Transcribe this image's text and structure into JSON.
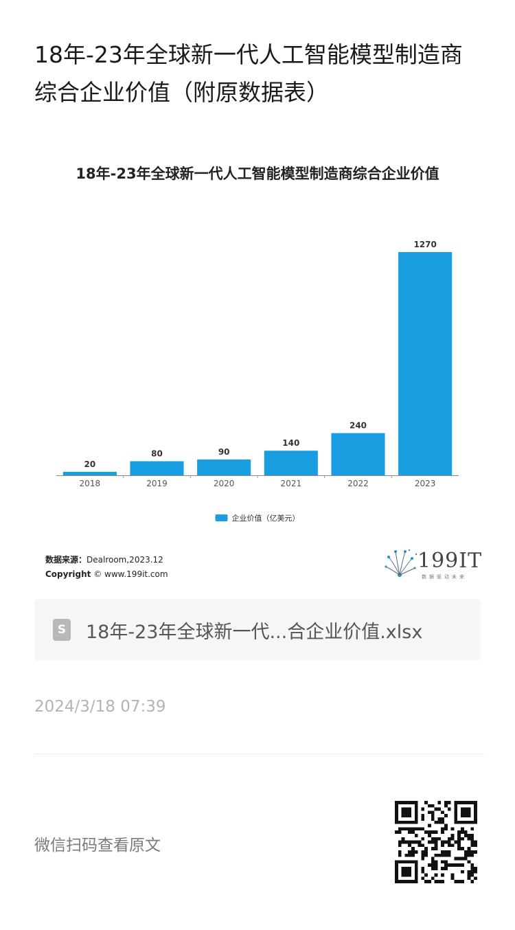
{
  "article": {
    "title": "18年-23年全球新一代人工智能模型制造商综合企业价值（附原数据表）"
  },
  "chart_data": {
    "type": "bar",
    "title": "18年-23年全球新一代人工智能模型制造商综合企业价值",
    "categories": [
      "2018",
      "2019",
      "2020",
      "2021",
      "2022",
      "2023"
    ],
    "series": [
      {
        "name": "企业价值（亿美元）",
        "values": [
          20,
          80,
          90,
          140,
          240,
          1270
        ],
        "color": "#1a9ee2"
      }
    ],
    "xlabel": "",
    "ylabel": "",
    "ylim": [
      0,
      1270
    ],
    "grid": false,
    "legend": "bottom-center",
    "data_labels": true
  },
  "source": {
    "label": "数据来源：",
    "value": "Dealroom,2023.12",
    "copyright_label": "Copyright",
    "copyright_value": "© www.199it.com"
  },
  "logo": {
    "text": "199IT",
    "subtitle": "数据驱动未来"
  },
  "attachment": {
    "icon": "spreadsheet-file-icon",
    "icon_letter": "S",
    "file_name": "18年-23年全球新一代...合企业价值.xlsx"
  },
  "timestamp": "2024/3/18 07:39",
  "footer": {
    "scan_text": "微信扫码查看原文",
    "qr_icon": "qr-code-icon"
  },
  "colors": {
    "bar": "#1a9ee2",
    "muted_text": "#b4b4b4",
    "card_bg": "#f6f6f6"
  }
}
